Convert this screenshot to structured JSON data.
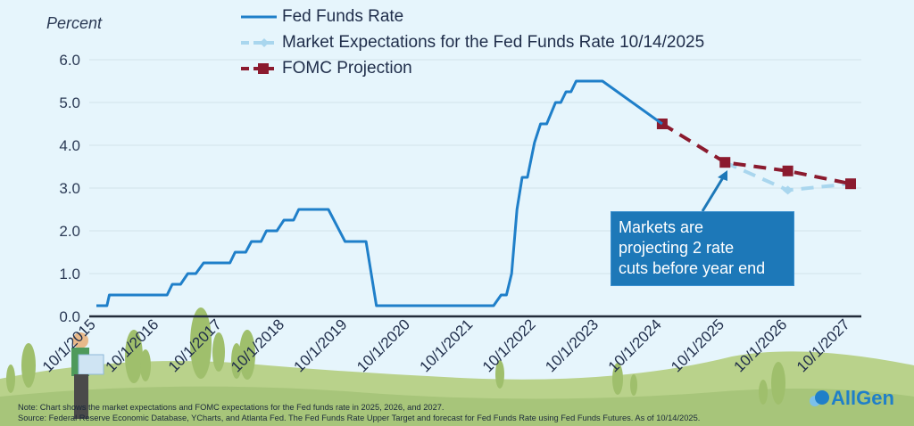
{
  "chart_data": {
    "type": "line",
    "ylabel": "Percent",
    "ylim": [
      0,
      6
    ],
    "yticks": [
      "0.0",
      "1.0",
      "2.0",
      "3.0",
      "4.0",
      "5.0",
      "6.0"
    ],
    "xlim": [
      "2015-10-01",
      "2027-10-01"
    ],
    "xticks": [
      "10/1/2015",
      "10/1/2016",
      "10/1/2017",
      "10/1/2018",
      "10/1/2019",
      "10/1/2020",
      "10/1/2021",
      "10/1/2022",
      "10/1/2023",
      "10/1/2024",
      "10/1/2025",
      "10/1/2026",
      "10/1/2027"
    ],
    "grid": true,
    "legend_position": "top",
    "series": [
      {
        "name": "Fed Funds Rate",
        "color": "#1f7fc9",
        "style": "solid",
        "points": [
          [
            "2015-10-01",
            0.25
          ],
          [
            "2015-12-01",
            0.25
          ],
          [
            "2015-12-15",
            0.5
          ],
          [
            "2016-11-15",
            0.5
          ],
          [
            "2016-12-15",
            0.75
          ],
          [
            "2017-02-01",
            0.75
          ],
          [
            "2017-03-15",
            1.0
          ],
          [
            "2017-05-01",
            1.0
          ],
          [
            "2017-06-15",
            1.25
          ],
          [
            "2017-11-15",
            1.25
          ],
          [
            "2017-12-15",
            1.5
          ],
          [
            "2018-02-15",
            1.5
          ],
          [
            "2018-03-20",
            1.75
          ],
          [
            "2018-05-15",
            1.75
          ],
          [
            "2018-06-15",
            2.0
          ],
          [
            "2018-08-15",
            2.0
          ],
          [
            "2018-09-25",
            2.25
          ],
          [
            "2018-11-20",
            2.25
          ],
          [
            "2018-12-20",
            2.5
          ],
          [
            "2019-06-10",
            2.5
          ],
          [
            "2019-09-15",
            1.75
          ],
          [
            "2020-01-15",
            1.75
          ],
          [
            "2020-03-15",
            0.25
          ],
          [
            "2022-01-25",
            0.25
          ],
          [
            "2022-03-10",
            0.5
          ],
          [
            "2022-04-10",
            0.5
          ],
          [
            "2022-05-10",
            1.0
          ],
          [
            "2022-06-10",
            2.5
          ],
          [
            "2022-07-10",
            3.25
          ],
          [
            "2022-08-10",
            3.25
          ],
          [
            "2022-09-20",
            4.06
          ],
          [
            "2022-10-25",
            4.5
          ],
          [
            "2022-11-30",
            4.5
          ],
          [
            "2023-01-20",
            5.0
          ],
          [
            "2023-02-20",
            5.0
          ],
          [
            "2023-03-22",
            5.25
          ],
          [
            "2023-04-20",
            5.25
          ],
          [
            "2023-05-20",
            5.5
          ],
          [
            "2023-10-20",
            5.5
          ],
          [
            "2024-10-01",
            4.5
          ]
        ]
      },
      {
        "name": "Market Expectations for the Fed Funds Rate 10/14/2025",
        "color": "#a9d6ee",
        "style": "dashed",
        "points": [
          [
            "2025-10-01",
            3.6
          ],
          [
            "2026-10-01",
            2.95
          ],
          [
            "2027-10-01",
            3.1
          ]
        ]
      },
      {
        "name": "FOMC Projection",
        "color": "#8b1a2e",
        "style": "dashed-square",
        "points": [
          [
            "2024-10-01",
            4.5
          ],
          [
            "2025-10-01",
            3.6
          ],
          [
            "2026-10-01",
            3.4
          ],
          [
            "2027-10-01",
            3.1
          ]
        ]
      }
    ],
    "annotation": {
      "text_lines": [
        "Markets are",
        "projecting 2 rate",
        "cuts before year end"
      ],
      "target": [
        "2025-10-01",
        3.6
      ]
    }
  },
  "footnote": {
    "note": "Note: Chart shows the market expectations and FOMC expectations for the Fed funds rate in 2025, 2026, and 2027.",
    "source": "Source: Federal Reserve Economic Database, YCharts, and Atlanta Fed. The Fed Funds Rate Upper Target and forecast for Fed Funds Rate using Fed Funds Futures. As of 10/14/2025."
  },
  "logo": {
    "text": "AllGen",
    "color": "#1f7fc9"
  }
}
